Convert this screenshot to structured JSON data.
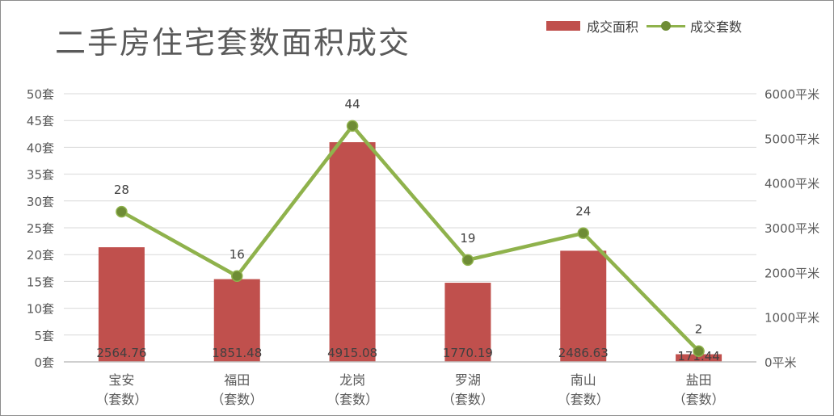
{
  "chart_data": {
    "type": "bar",
    "title": "二手房住宅套数面积成交",
    "categories": [
      {
        "name": "宝安",
        "sub": "（套数）"
      },
      {
        "name": "福田",
        "sub": "（套数）"
      },
      {
        "name": "龙岗",
        "sub": "（套数）"
      },
      {
        "name": "罗湖",
        "sub": "（套数）"
      },
      {
        "name": "南山",
        "sub": "（套数）"
      },
      {
        "name": "盐田",
        "sub": "（套数）"
      }
    ],
    "series": [
      {
        "name": "成交面积",
        "type": "bar",
        "axis": "right",
        "color": "#c0504d",
        "values": [
          2564.76,
          1851.48,
          4915.08,
          1770.19,
          2486.63,
          171.44
        ],
        "labels": [
          "2564.76",
          "1851.48",
          "4915.08",
          "1770.19",
          "2486.63",
          "171.44"
        ]
      },
      {
        "name": "成交套数",
        "type": "line",
        "axis": "left",
        "color": "#8fb24c",
        "marker_color": "#6e8c35",
        "values": [
          28,
          16,
          44,
          19,
          24,
          2
        ],
        "labels": [
          "28",
          "16",
          "44",
          "19",
          "24",
          "2"
        ]
      }
    ],
    "y_left": {
      "min": 0,
      "max": 50,
      "step": 5,
      "ticks": [
        "0套",
        "5套",
        "10套",
        "15套",
        "20套",
        "25套",
        "30套",
        "35套",
        "40套",
        "45套",
        "50套"
      ]
    },
    "y_right": {
      "min": 0,
      "max": 6000,
      "step": 1000,
      "ticks": [
        "0平米",
        "1000平米",
        "2000平米",
        "3000平米",
        "4000平米",
        "5000平米",
        "6000平米"
      ]
    },
    "grid": true,
    "legend_position": "top-right"
  }
}
